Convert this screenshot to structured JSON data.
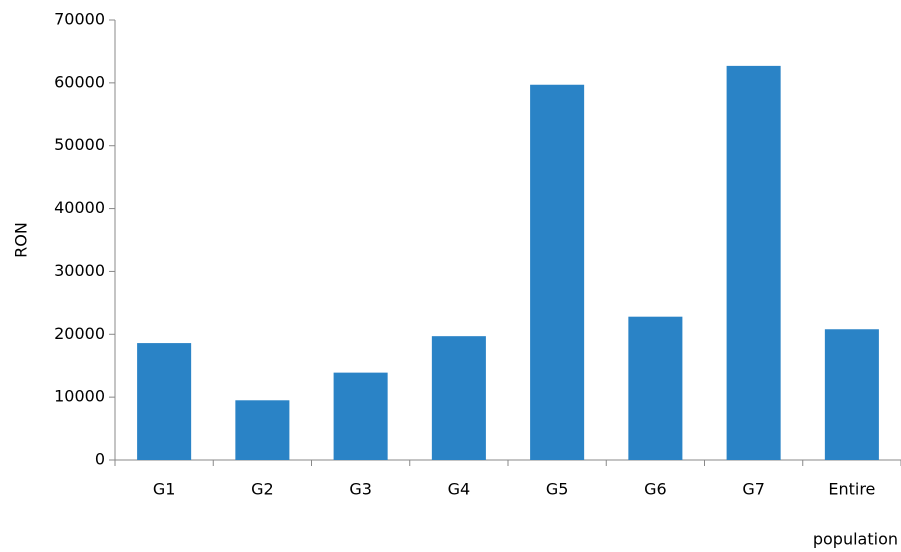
{
  "chart_data": {
    "type": "bar",
    "x_label": "population",
    "y_label": "RON",
    "categories": [
      "G1",
      "G2",
      "G3",
      "G4",
      "G5",
      "G6",
      "G7",
      "Entire"
    ],
    "values": [
      18600,
      9500,
      13900,
      19700,
      59700,
      22800,
      62700,
      20800
    ],
    "color": "#2a83c6",
    "ylim": [
      0,
      70000
    ],
    "yticks": [
      0,
      10000,
      20000,
      30000,
      40000,
      50000,
      60000,
      70000
    ],
    "grid": false
  }
}
